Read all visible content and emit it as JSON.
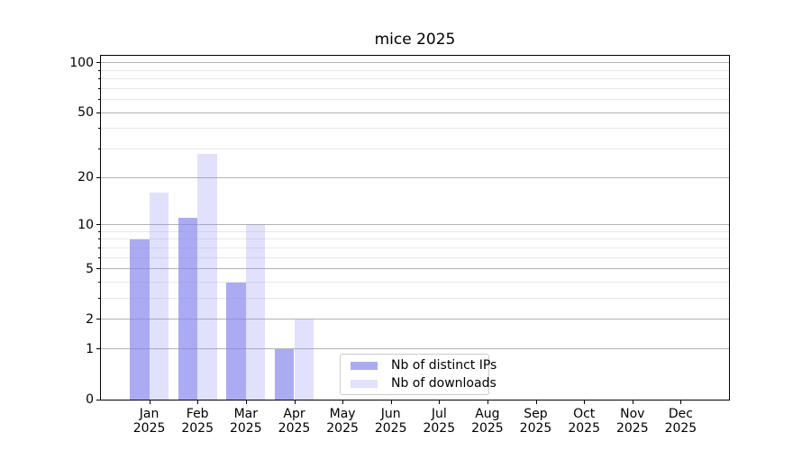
{
  "title": "mice 2025",
  "colors": {
    "bar_base": "#8888f0",
    "ips_fill": "rgba(136,136,240,0.7)",
    "downloads_fill": "rgba(136,136,240,0.25)",
    "grid_major": "#b2b2b2",
    "grid_minor": "#e8e8e8",
    "axis_line": "#000000",
    "background": "#ffffff",
    "legend_border": "#cccccc",
    "text": "#000000"
  },
  "chart_data": {
    "type": "bar",
    "title": "mice 2025",
    "categories": [
      "Jan 2025",
      "Feb 2025",
      "Mar 2025",
      "Apr 2025",
      "May 2025",
      "Jun 2025",
      "Jul 2025",
      "Aug 2025",
      "Sep 2025",
      "Oct 2025",
      "Nov 2025",
      "Dec 2025"
    ],
    "month_labels": [
      "Jan",
      "Feb",
      "Mar",
      "Apr",
      "May",
      "Jun",
      "Jul",
      "Aug",
      "Sep",
      "Oct",
      "Nov",
      "Dec"
    ],
    "year_label": "2025",
    "series": [
      {
        "key": "ips",
        "name": "Nb of distinct IPs",
        "color": "rgba(136,136,240,0.7)",
        "values": [
          8,
          11,
          4,
          1,
          0,
          0,
          0,
          0,
          0,
          0,
          0,
          0
        ]
      },
      {
        "key": "downloads",
        "name": "Nb of downloads",
        "color": "rgba(136,136,240,0.25)",
        "values": [
          16,
          28,
          10,
          2,
          0,
          0,
          0,
          0,
          0,
          0,
          0,
          0
        ]
      }
    ],
    "xlabel": "",
    "ylabel": "",
    "yscale": "log1p",
    "ylim": [
      0,
      110
    ],
    "yticks_major": [
      0,
      1,
      2,
      5,
      10,
      20,
      50,
      100
    ],
    "yticks_minor": [
      3,
      4,
      6,
      7,
      8,
      9,
      30,
      40,
      60,
      70,
      80,
      90
    ],
    "grid": "horizontal",
    "legend_position": "lower-center",
    "bar_group_width_ratio": 0.8
  }
}
